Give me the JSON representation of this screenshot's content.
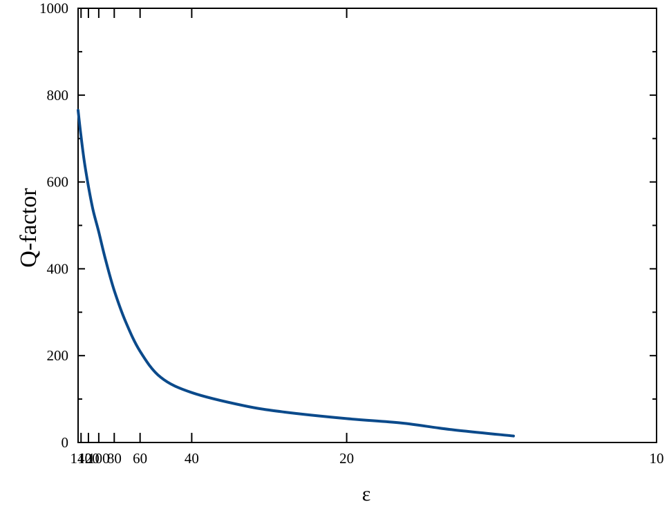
{
  "chart_data": {
    "type": "line",
    "title": "",
    "xlabel": "ε",
    "ylabel": "Q-factor",
    "x_scale": "reciprocal",
    "xlim": [
      150,
      10
    ],
    "ylim": [
      0,
      1000
    ],
    "x_ticks": [
      140,
      120,
      100,
      80,
      60,
      40,
      20,
      10
    ],
    "y_ticks": [
      0,
      200,
      400,
      600,
      800,
      1000
    ],
    "grid": false,
    "line_color": "#0b4a8b",
    "series": [
      {
        "name": "",
        "x": [
          150,
          140,
          130,
          120,
          110,
          100,
          90,
          80,
          70,
          60,
          50,
          40,
          30,
          25,
          20,
          17,
          15,
          13
        ],
        "y": [
          765,
          705,
          645,
          590,
          535,
          485,
          420,
          350,
          280,
          210,
          150,
          115,
          85,
          70,
          55,
          45,
          30,
          15
        ]
      }
    ]
  }
}
